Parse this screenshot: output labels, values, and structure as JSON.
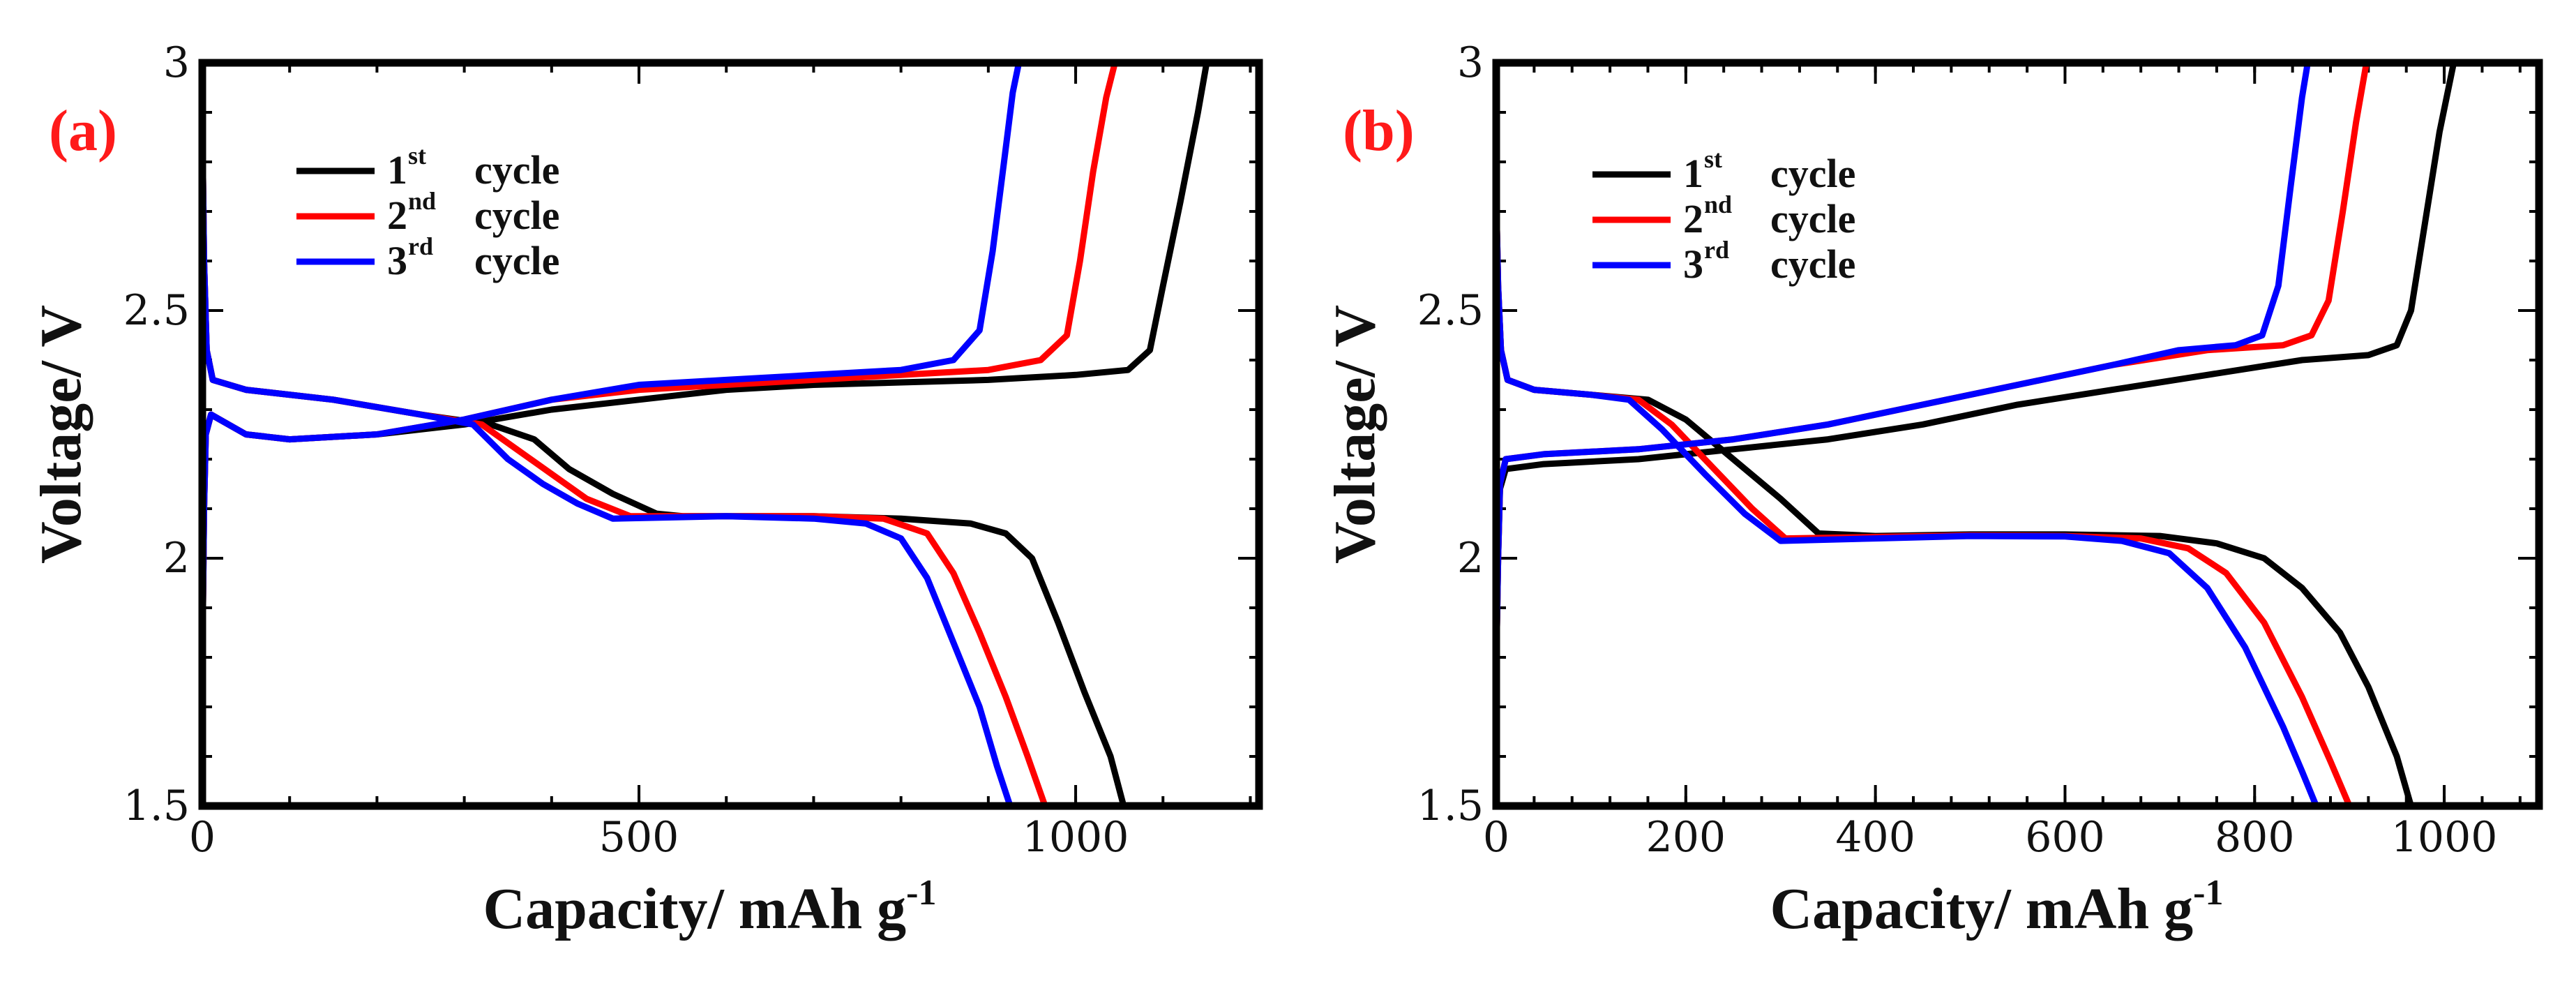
{
  "chart_data": [
    {
      "type": "line",
      "panel_label": "(a)",
      "xlabel": "Capacity/ mAh g",
      "xlabel_sup": "-1",
      "ylabel": "Voltage/ V",
      "xlim": [
        0,
        1210
      ],
      "ylim": [
        1.5,
        3.0
      ],
      "xticks": [
        0,
        500,
        1000
      ],
      "xtick_labels": [
        "0",
        "500",
        "1000"
      ],
      "yticks": [
        1.5,
        2.0,
        2.5,
        3.0
      ],
      "ytick_labels": [
        "1.5",
        "2",
        "2.5",
        "3"
      ],
      "legend_position": "top-left",
      "series": [
        {
          "name": "1st cycle",
          "legend_base": "1",
          "legend_sup": "st",
          "legend_tail": "cycle",
          "color": "#000000",
          "charge": [
            [
              0,
              1.78
            ],
            [
              2,
              2.1
            ],
            [
              4,
              2.25
            ],
            [
              10,
              2.29
            ],
            [
              20,
              2.28
            ],
            [
              50,
              2.25
            ],
            [
              100,
              2.24
            ],
            [
              200,
              2.25
            ],
            [
              300,
              2.27
            ],
            [
              400,
              2.3
            ],
            [
              500,
              2.32
            ],
            [
              600,
              2.34
            ],
            [
              700,
              2.35
            ],
            [
              800,
              2.355
            ],
            [
              900,
              2.36
            ],
            [
              1000,
              2.37
            ],
            [
              1060,
              2.38
            ],
            [
              1085,
              2.42
            ],
            [
              1100,
              2.55
            ],
            [
              1120,
              2.72
            ],
            [
              1140,
              2.9
            ],
            [
              1150,
              3.0
            ]
          ],
          "discharge": [
            [
              0,
              2.88
            ],
            [
              2,
              2.6
            ],
            [
              5,
              2.42
            ],
            [
              12,
              2.36
            ],
            [
              50,
              2.34
            ],
            [
              150,
              2.32
            ],
            [
              250,
              2.29
            ],
            [
              330,
              2.27
            ],
            [
              380,
              2.24
            ],
            [
              420,
              2.18
            ],
            [
              470,
              2.13
            ],
            [
              520,
              2.09
            ],
            [
              550,
              2.085
            ],
            [
              700,
              2.085
            ],
            [
              800,
              2.08
            ],
            [
              880,
              2.07
            ],
            [
              920,
              2.05
            ],
            [
              950,
              2.0
            ],
            [
              980,
              1.87
            ],
            [
              1010,
              1.73
            ],
            [
              1040,
              1.6
            ],
            [
              1055,
              1.5
            ]
          ]
        },
        {
          "name": "2nd cycle",
          "legend_base": "2",
          "legend_sup": "nd",
          "legend_tail": "cycle",
          "color": "#ff0000",
          "charge": [
            [
              0,
              1.78
            ],
            [
              2,
              2.1
            ],
            [
              4,
              2.25
            ],
            [
              10,
              2.29
            ],
            [
              20,
              2.28
            ],
            [
              50,
              2.25
            ],
            [
              100,
              2.24
            ],
            [
              200,
              2.25
            ],
            [
              300,
              2.28
            ],
            [
              400,
              2.32
            ],
            [
              500,
              2.34
            ],
            [
              600,
              2.35
            ],
            [
              700,
              2.36
            ],
            [
              800,
              2.37
            ],
            [
              900,
              2.38
            ],
            [
              960,
              2.4
            ],
            [
              990,
              2.45
            ],
            [
              1005,
              2.6
            ],
            [
              1020,
              2.78
            ],
            [
              1035,
              2.93
            ],
            [
              1045,
              3.0
            ]
          ],
          "discharge": [
            [
              0,
              2.88
            ],
            [
              2,
              2.6
            ],
            [
              5,
              2.42
            ],
            [
              12,
              2.36
            ],
            [
              50,
              2.34
            ],
            [
              150,
              2.32
            ],
            [
              250,
              2.29
            ],
            [
              320,
              2.27
            ],
            [
              360,
              2.22
            ],
            [
              400,
              2.17
            ],
            [
              440,
              2.12
            ],
            [
              490,
              2.085
            ],
            [
              600,
              2.085
            ],
            [
              700,
              2.085
            ],
            [
              780,
              2.08
            ],
            [
              830,
              2.05
            ],
            [
              860,
              1.97
            ],
            [
              890,
              1.85
            ],
            [
              920,
              1.72
            ],
            [
              945,
              1.6
            ],
            [
              965,
              1.5
            ]
          ]
        },
        {
          "name": "3rd cycle",
          "legend_base": "3",
          "legend_sup": "rd",
          "legend_tail": "cycle",
          "color": "#0000ff",
          "charge": [
            [
              0,
              1.78
            ],
            [
              2,
              2.1
            ],
            [
              4,
              2.25
            ],
            [
              10,
              2.29
            ],
            [
              20,
              2.28
            ],
            [
              50,
              2.25
            ],
            [
              100,
              2.24
            ],
            [
              200,
              2.25
            ],
            [
              300,
              2.28
            ],
            [
              400,
              2.32
            ],
            [
              500,
              2.35
            ],
            [
              600,
              2.36
            ],
            [
              700,
              2.37
            ],
            [
              800,
              2.38
            ],
            [
              860,
              2.4
            ],
            [
              890,
              2.46
            ],
            [
              905,
              2.62
            ],
            [
              918,
              2.8
            ],
            [
              928,
              2.94
            ],
            [
              935,
              3.0
            ]
          ],
          "discharge": [
            [
              0,
              2.88
            ],
            [
              2,
              2.6
            ],
            [
              5,
              2.42
            ],
            [
              12,
              2.36
            ],
            [
              50,
              2.34
            ],
            [
              150,
              2.32
            ],
            [
              250,
              2.29
            ],
            [
              310,
              2.27
            ],
            [
              350,
              2.2
            ],
            [
              390,
              2.15
            ],
            [
              430,
              2.11
            ],
            [
              470,
              2.08
            ],
            [
              600,
              2.085
            ],
            [
              700,
              2.08
            ],
            [
              760,
              2.07
            ],
            [
              800,
              2.04
            ],
            [
              830,
              1.96
            ],
            [
              860,
              1.83
            ],
            [
              890,
              1.7
            ],
            [
              910,
              1.58
            ],
            [
              925,
              1.5
            ]
          ]
        }
      ]
    },
    {
      "type": "line",
      "panel_label": "(b)",
      "xlabel": "Capacity/ mAh g",
      "xlabel_sup": "-1",
      "ylabel": "Voltage/ V",
      "xlim": [
        0,
        1100
      ],
      "ylim": [
        1.5,
        3.0
      ],
      "xticks": [
        0,
        200,
        400,
        600,
        800,
        1000
      ],
      "xtick_labels": [
        "0",
        "200",
        "400",
        "600",
        "800",
        "1000"
      ],
      "yticks": [
        1.5,
        2.0,
        2.5,
        3.0
      ],
      "ytick_labels": [
        "1.5",
        "2",
        "2.5",
        "3"
      ],
      "legend_position": "top-left",
      "series": [
        {
          "name": "1st cycle",
          "legend_base": "1",
          "legend_sup": "st",
          "legend_tail": "cycle",
          "color": "#000000",
          "charge": [
            [
              0,
              1.78
            ],
            [
              2,
              2.0
            ],
            [
              4,
              2.14
            ],
            [
              10,
              2.18
            ],
            [
              50,
              2.19
            ],
            [
              150,
              2.2
            ],
            [
              250,
              2.22
            ],
            [
              350,
              2.24
            ],
            [
              450,
              2.27
            ],
            [
              550,
              2.31
            ],
            [
              650,
              2.34
            ],
            [
              750,
              2.37
            ],
            [
              850,
              2.4
            ],
            [
              920,
              2.41
            ],
            [
              950,
              2.43
            ],
            [
              965,
              2.5
            ],
            [
              980,
              2.68
            ],
            [
              995,
              2.86
            ],
            [
              1010,
              3.0
            ]
          ],
          "discharge": [
            [
              0,
              2.73
            ],
            [
              2,
              2.55
            ],
            [
              5,
              2.42
            ],
            [
              12,
              2.36
            ],
            [
              40,
              2.34
            ],
            [
              100,
              2.33
            ],
            [
              160,
              2.32
            ],
            [
              200,
              2.28
            ],
            [
              250,
              2.2
            ],
            [
              300,
              2.12
            ],
            [
              340,
              2.05
            ],
            [
              400,
              2.045
            ],
            [
              500,
              2.048
            ],
            [
              600,
              2.048
            ],
            [
              700,
              2.045
            ],
            [
              760,
              2.03
            ],
            [
              810,
              2.0
            ],
            [
              850,
              1.94
            ],
            [
              890,
              1.85
            ],
            [
              920,
              1.74
            ],
            [
              950,
              1.6
            ],
            [
              965,
              1.5
            ]
          ]
        },
        {
          "name": "2nd cycle",
          "legend_base": "2",
          "legend_sup": "nd",
          "legend_tail": "cycle",
          "color": "#ff0000",
          "charge": [
            [
              0,
              1.78
            ],
            [
              2,
              2.0
            ],
            [
              4,
              2.15
            ],
            [
              10,
              2.2
            ],
            [
              50,
              2.21
            ],
            [
              150,
              2.22
            ],
            [
              250,
              2.24
            ],
            [
              350,
              2.27
            ],
            [
              450,
              2.31
            ],
            [
              550,
              2.35
            ],
            [
              650,
              2.39
            ],
            [
              750,
              2.42
            ],
            [
              830,
              2.43
            ],
            [
              860,
              2.45
            ],
            [
              878,
              2.52
            ],
            [
              893,
              2.7
            ],
            [
              907,
              2.88
            ],
            [
              918,
              3.0
            ]
          ],
          "discharge": [
            [
              0,
              2.73
            ],
            [
              2,
              2.55
            ],
            [
              5,
              2.42
            ],
            [
              12,
              2.36
            ],
            [
              40,
              2.34
            ],
            [
              100,
              2.33
            ],
            [
              150,
              2.32
            ],
            [
              185,
              2.27
            ],
            [
              230,
              2.18
            ],
            [
              270,
              2.1
            ],
            [
              305,
              2.04
            ],
            [
              400,
              2.043
            ],
            [
              500,
              2.046
            ],
            [
              600,
              2.045
            ],
            [
              680,
              2.04
            ],
            [
              730,
              2.02
            ],
            [
              770,
              1.97
            ],
            [
              810,
              1.87
            ],
            [
              850,
              1.72
            ],
            [
              880,
              1.59
            ],
            [
              900,
              1.5
            ]
          ]
        },
        {
          "name": "3rd cycle",
          "legend_base": "3",
          "legend_sup": "rd",
          "legend_tail": "cycle",
          "color": "#0000ff",
          "charge": [
            [
              0,
              1.78
            ],
            [
              2,
              2.0
            ],
            [
              4,
              2.15
            ],
            [
              10,
              2.2
            ],
            [
              50,
              2.21
            ],
            [
              150,
              2.22
            ],
            [
              250,
              2.24
            ],
            [
              350,
              2.27
            ],
            [
              450,
              2.31
            ],
            [
              550,
              2.35
            ],
            [
              650,
              2.39
            ],
            [
              720,
              2.42
            ],
            [
              780,
              2.43
            ],
            [
              808,
              2.45
            ],
            [
              825,
              2.55
            ],
            [
              838,
              2.75
            ],
            [
              850,
              2.93
            ],
            [
              856,
              3.0
            ]
          ],
          "discharge": [
            [
              0,
              2.73
            ],
            [
              2,
              2.55
            ],
            [
              5,
              2.42
            ],
            [
              12,
              2.36
            ],
            [
              40,
              2.34
            ],
            [
              100,
              2.33
            ],
            [
              140,
              2.32
            ],
            [
              175,
              2.26
            ],
            [
              220,
              2.17
            ],
            [
              262,
              2.09
            ],
            [
              300,
              2.035
            ],
            [
              400,
              2.04
            ],
            [
              500,
              2.045
            ],
            [
              600,
              2.044
            ],
            [
              660,
              2.035
            ],
            [
              710,
              2.01
            ],
            [
              750,
              1.94
            ],
            [
              790,
              1.82
            ],
            [
              830,
              1.66
            ],
            [
              850,
              1.57
            ],
            [
              865,
              1.5
            ]
          ]
        }
      ]
    }
  ]
}
